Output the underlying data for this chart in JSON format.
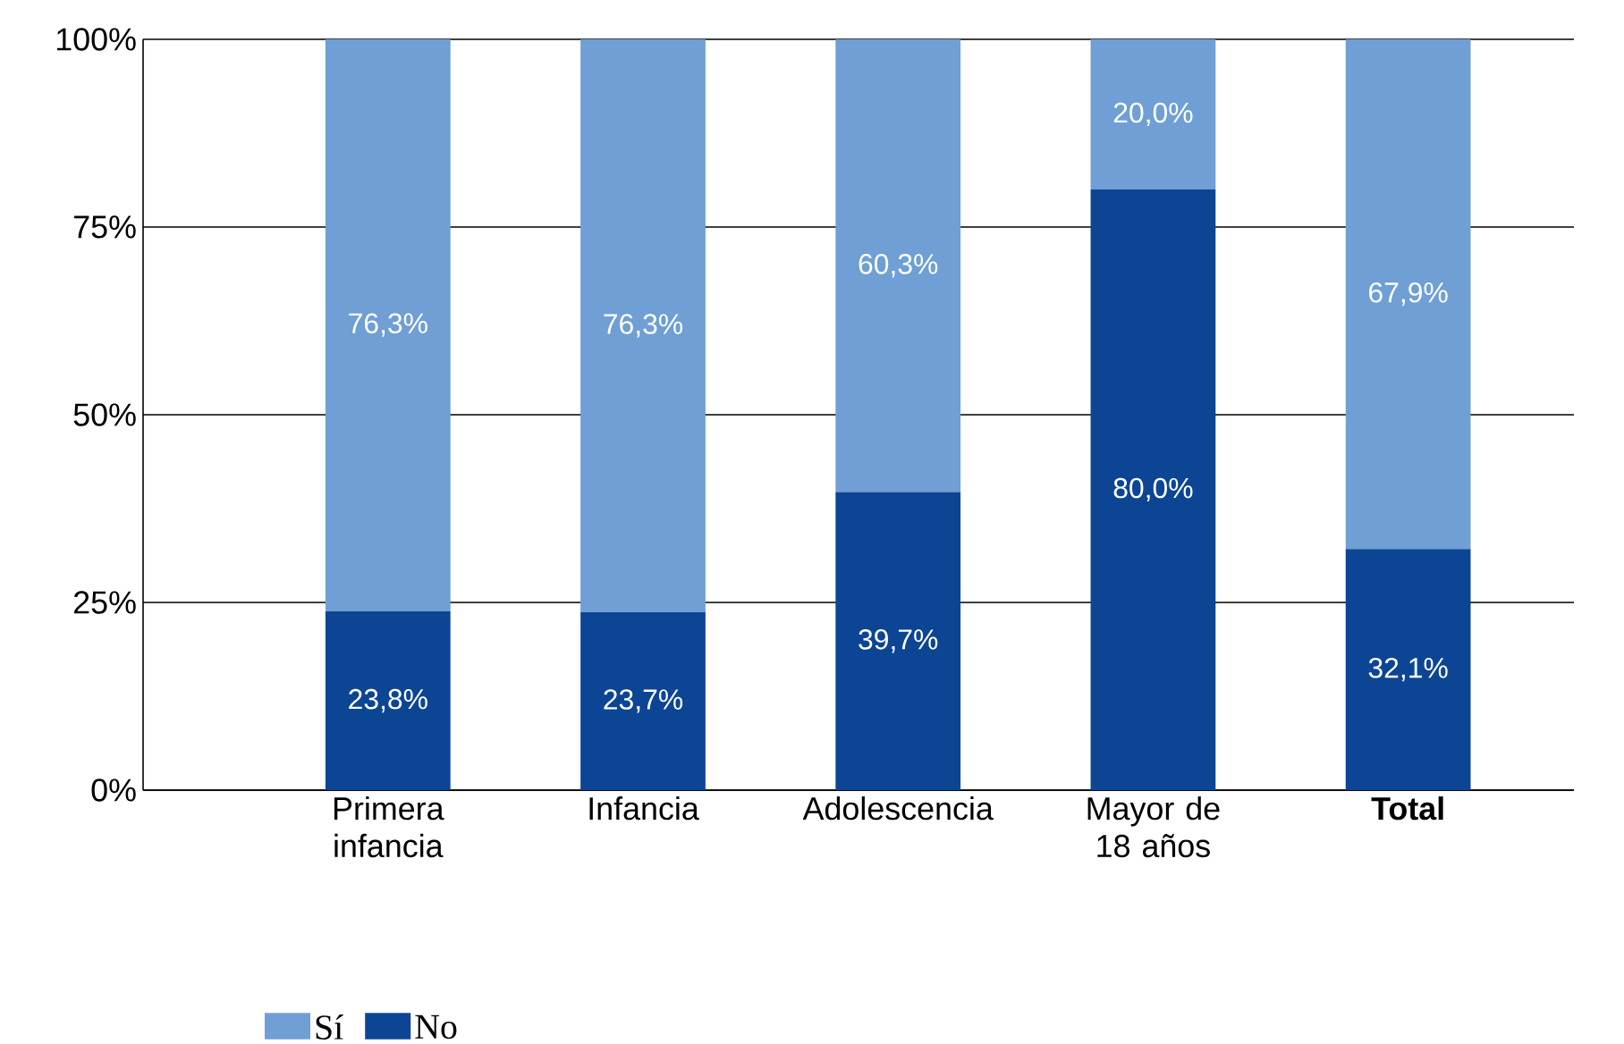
{
  "chart_data": {
    "type": "bar",
    "stacked": true,
    "categories": [
      "Primera infancia",
      "Infancia",
      "Adolescencia",
      "Mayor de 18 años",
      "**Total**"
    ],
    "series": [
      {
        "name": "No",
        "color": "#0d4595",
        "values": [
          23.8,
          23.7,
          39.7,
          80.0,
          32.1
        ],
        "value_labels": [
          "23,8%",
          "23,7%",
          "39,7%",
          "80,0%",
          "32,1%"
        ]
      },
      {
        "name": "Sí",
        "color": "#6f9fd4",
        "values": [
          76.3,
          76.3,
          60.3,
          20.0,
          67.9
        ],
        "value_labels": [
          "76,3%",
          "76,3%",
          "60,3%",
          "20,0%",
          "67,9%"
        ]
      }
    ],
    "ylim": [
      0,
      100
    ],
    "yticks": [
      {
        "value": 0,
        "label": "0%"
      },
      {
        "value": 25,
        "label": "25%"
      },
      {
        "value": 50,
        "label": "50%"
      },
      {
        "value": 75,
        "label": "75%"
      },
      {
        "value": 100,
        "label": "100%"
      }
    ],
    "grid": "y",
    "legend": "bottom left"
  }
}
